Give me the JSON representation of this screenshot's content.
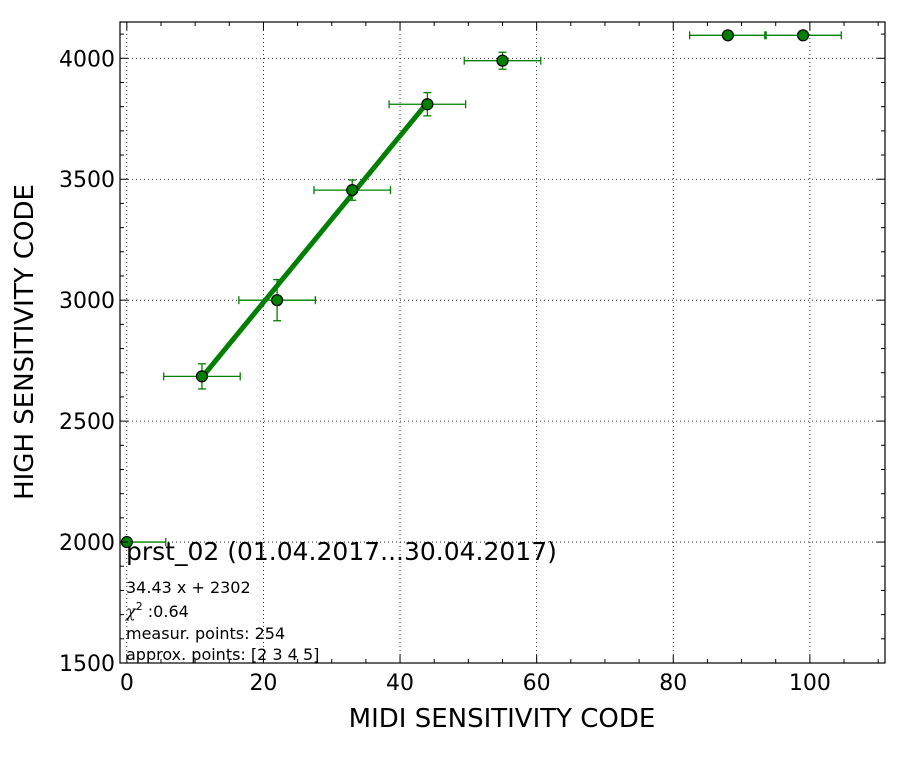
{
  "chart_data": {
    "type": "scatter",
    "xlabel": "MIDI SENSITIVITY CODE",
    "ylabel": "HIGH SENSITIVITY CODE",
    "xlim": [
      -1,
      111
    ],
    "ylim": [
      1500,
      4150
    ],
    "xticks": [
      0,
      20,
      40,
      60,
      80,
      100
    ],
    "yticks": [
      1500,
      2000,
      2500,
      3000,
      3500,
      4000
    ],
    "grid": true,
    "colors": {
      "series": "#008000",
      "marker_fill": "#008000",
      "marker_edge": "#000000"
    },
    "series": [
      {
        "kind": "errorbar",
        "points": [
          {
            "x": 0,
            "y": 2000,
            "xerr": [
              0,
              5.7
            ],
            "yerr": 0
          },
          {
            "x": 11,
            "y": 2685,
            "xerr": 5.6,
            "yerr": 52
          },
          {
            "x": 22,
            "y": 3000,
            "xerr": 5.6,
            "yerr": 85
          },
          {
            "x": 33,
            "y": 3455,
            "xerr": 5.6,
            "yerr": 42
          },
          {
            "x": 44,
            "y": 3810,
            "xerr": 5.6,
            "yerr": 48
          },
          {
            "x": 55,
            "y": 3990,
            "xerr": 5.6,
            "yerr": 35
          },
          {
            "x": 88,
            "y": 4095,
            "xerr": 5.6,
            "yerr": 0
          },
          {
            "x": 99,
            "y": 4095,
            "xerr": 5.6,
            "yerr": 0
          }
        ]
      },
      {
        "kind": "fit_line",
        "slope": 34.43,
        "intercept": 2302,
        "x_range": [
          11,
          44
        ]
      }
    ],
    "annotation": {
      "title": "prst_02 (01.04.2017...30.04.2017)",
      "fit": "34.43 x + 2302",
      "chi_symbol": "χ",
      "chi_sup": "2",
      "chi_value": " :0.64",
      "measur": "measur. points: 254",
      "approx": "approx. points: [2 3 4 5]"
    }
  }
}
